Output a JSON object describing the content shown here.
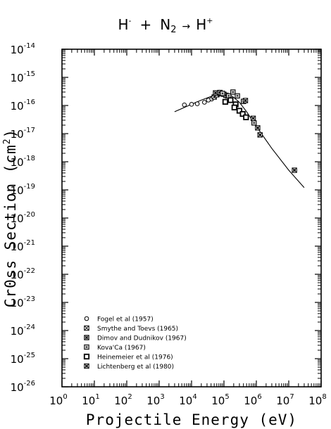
{
  "chart_data": {
    "type": "scatter",
    "title": {
      "H": "H",
      "sup_minus": "-",
      "plus": "+",
      "N": "N",
      "sub_2": "2",
      "arrow": "→",
      "H_out": "H",
      "sup_plus": "+"
    },
    "xlabel": "Projectile Energy (eV)",
    "ylabel": "Cr0ss Section (cm",
    "ylabel_exp": "2",
    "ylabel_close": ")",
    "xscale": "log",
    "yscale": "log",
    "xlim": [
      1,
      100000000
    ],
    "ylim": [
      1e-26,
      1e-14
    ],
    "x_ticks": [
      {
        "base": "10",
        "exp": "0",
        "v": 1
      },
      {
        "base": "10",
        "exp": "1",
        "v": 10
      },
      {
        "base": "10",
        "exp": "2",
        "v": 100
      },
      {
        "base": "10",
        "exp": "3",
        "v": 1000
      },
      {
        "base": "10",
        "exp": "4",
        "v": 10000
      },
      {
        "base": "10",
        "exp": "5",
        "v": 100000
      },
      {
        "base": "10",
        "exp": "6",
        "v": 1000000
      },
      {
        "base": "10",
        "exp": "7",
        "v": 10000000
      },
      {
        "base": "10",
        "exp": "8",
        "v": 100000000
      }
    ],
    "y_ticks": [
      {
        "base": "10",
        "exp": "-14",
        "v": 1e-14
      },
      {
        "base": "10",
        "exp": "-15",
        "v": 1e-15
      },
      {
        "base": "10",
        "exp": "-16",
        "v": 1e-16
      },
      {
        "base": "10",
        "exp": "-17",
        "v": 1e-17
      },
      {
        "base": "10",
        "exp": "-18",
        "v": 1e-18
      },
      {
        "base": "10",
        "exp": "-19",
        "v": 1e-19
      },
      {
        "base": "10",
        "exp": "-20",
        "v": 1e-20
      },
      {
        "base": "10",
        "exp": "-21",
        "v": 1e-21
      },
      {
        "base": "10",
        "exp": "-22",
        "v": 1e-22
      },
      {
        "base": "10",
        "exp": "-23",
        "v": 1e-23
      },
      {
        "base": "10",
        "exp": "-24",
        "v": 1e-24
      },
      {
        "base": "10",
        "exp": "-25",
        "v": 1e-25
      },
      {
        "base": "10",
        "exp": "-26",
        "v": 1e-26
      }
    ],
    "grid": false,
    "legend_position": "bottom-left",
    "fit_curve": {
      "x": [
        3000,
        6000,
        10000,
        20000,
        40000,
        70000,
        100000,
        150000,
        200000,
        300000,
        500000,
        1000000,
        3000000,
        10000000,
        30000000
      ],
      "y": [
        6e-17,
        8.5e-17,
        1.1e-16,
        1.55e-16,
        2.1e-16,
        2.6e-16,
        2.65e-16,
        2.4e-16,
        1.95e-16,
        1.3e-16,
        6e-17,
        1.8e-17,
        3e-18,
        5e-19,
        1.2e-19
      ]
    },
    "series": [
      {
        "name": "Fogel et al (1957)",
        "marker": "circle",
        "points": [
          [
            6000,
            1.05e-16
          ],
          [
            10000,
            1.1e-16
          ],
          [
            15000,
            1.15e-16
          ],
          [
            25000,
            1.3e-16
          ],
          [
            33000,
            1.55e-16
          ],
          [
            42000,
            1.7e-16
          ]
        ]
      },
      {
        "name": "Smythe and Toevs (1965)",
        "marker": "square-x",
        "points": [
          [
            50000,
            2e-16
          ],
          [
            60000,
            2.4e-16
          ],
          [
            80000,
            2.6e-16
          ],
          [
            100000,
            2.5e-16
          ],
          [
            130000,
            2.2e-16
          ]
        ]
      },
      {
        "name": "Dimov and Dudnikov (1967)",
        "marker": "square-cross",
        "points": [
          [
            55000,
            2.8e-16
          ],
          [
            75000,
            2.9e-16
          ],
          [
            115000,
            2.3e-16
          ]
        ]
      },
      {
        "name": "Kova'Ca (1967)",
        "marker": "square-dot",
        "points": [
          [
            90000,
            2.7e-16
          ],
          [
            140000,
            2.2e-16
          ],
          [
            190000,
            3e-16
          ],
          [
            260000,
            2.2e-16
          ],
          [
            400000,
            1.4e-16
          ],
          [
            850000,
            2.4e-17
          ]
        ]
      },
      {
        "name": "Heinemeier et al (1976)",
        "marker": "square",
        "points": [
          [
            110000,
            1.35e-16
          ],
          [
            160000,
            1.55e-16
          ],
          [
            230000,
            1.1e-16
          ],
          [
            210000,
            8.5e-17
          ],
          [
            300000,
            6.5e-17
          ],
          [
            380000,
            5e-17
          ],
          [
            480000,
            3.8e-17
          ]
        ]
      },
      {
        "name": "Lichtenberg et al (1980)",
        "marker": "square-x-box",
        "points": [
          [
            460000,
            1.5e-16
          ],
          [
            800000,
            3.5e-17
          ],
          [
            1100000,
            1.6e-17
          ],
          [
            1300000,
            9e-18
          ],
          [
            15000000,
            5e-19
          ]
        ]
      }
    ]
  }
}
